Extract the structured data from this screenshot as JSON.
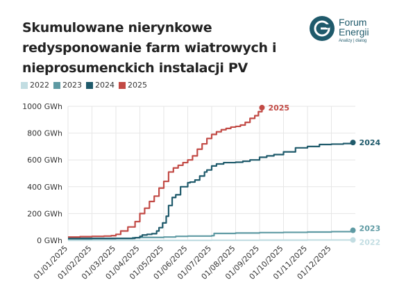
{
  "title_lines": [
    "Skumulowane nierynkowe",
    "redysponowanie farm wiatrowych i",
    "nieprosumenckich instalacji PV"
  ],
  "logo": {
    "name_line1": "Forum",
    "name_line2": "Energii",
    "tagline": "Analizy | dialog"
  },
  "colors": {
    "s2022": "#c2dde2",
    "s2023": "#5e9aa3",
    "s2024": "#1f5a6b",
    "s2025": "#c24a45",
    "grid": "#e6e6e6",
    "axis_text": "#333333"
  },
  "chart_data": {
    "type": "line",
    "y_unit": "GWh",
    "ylim": [
      0,
      1000
    ],
    "y_ticks": [
      {
        "value": 0,
        "label": "0 GWh"
      },
      {
        "value": 200,
        "label": "200 GWh"
      },
      {
        "value": 400,
        "label": "400 GWh"
      },
      {
        "value": 600,
        "label": "600 GWh"
      },
      {
        "value": 800,
        "label": "800 GWh"
      },
      {
        "value": 1000,
        "label": "1000 GWh"
      }
    ],
    "x_ticks": [
      "01/01/2025",
      "01/02/2025",
      "01/03/2025",
      "01/04/2025",
      "01/05/2025",
      "01/06/2025",
      "01/07/2025",
      "01/08/2025",
      "01/09/2025",
      "01/10/2025",
      "01/11/2025",
      "01/12/2025"
    ],
    "legend_position": "top-left",
    "grid": true,
    "series": [
      {
        "name": "2022",
        "end_label": "2022",
        "x": [
          0,
          1,
          2,
          3,
          4,
          5,
          6,
          7,
          8,
          9,
          10,
          11,
          11.9
        ],
        "values": [
          0,
          0,
          0,
          0,
          0,
          0,
          1,
          1,
          2,
          2,
          3,
          3,
          3
        ]
      },
      {
        "name": "2023",
        "end_label": "2023",
        "x": [
          0,
          1,
          2,
          2.7,
          3,
          4,
          4.5,
          5,
          6,
          6.1,
          7,
          8,
          9,
          10,
          11,
          11.9
        ],
        "values": [
          10,
          12,
          14,
          20,
          22,
          25,
          30,
          32,
          35,
          52,
          55,
          58,
          60,
          62,
          65,
          75
        ]
      },
      {
        "name": "2024",
        "end_label": "2024",
        "x": [
          0,
          0.5,
          1,
          1.5,
          2,
          2.3,
          2.5,
          2.8,
          3,
          3.1,
          3.3,
          3.5,
          3.7,
          3.8,
          3.95,
          4.1,
          4.2,
          4.35,
          4.5,
          4.7,
          5,
          5.1,
          5.3,
          5.5,
          5.7,
          5.8,
          6,
          6.2,
          6.5,
          7,
          7.3,
          7.6,
          8,
          8.3,
          8.6,
          9,
          9.5,
          10,
          10.5,
          11,
          11.5,
          11.9
        ],
        "values": [
          15,
          15,
          15,
          15,
          15,
          15,
          15,
          20,
          30,
          40,
          45,
          50,
          70,
          95,
          130,
          180,
          260,
          320,
          340,
          400,
          430,
          435,
          450,
          480,
          510,
          525,
          555,
          570,
          580,
          583,
          590,
          600,
          620,
          630,
          640,
          660,
          690,
          700,
          715,
          718,
          722,
          730
        ]
      },
      {
        "name": "2025",
        "end_label": "2025",
        "x": [
          0,
          0.5,
          1,
          1.5,
          1.8,
          2,
          2.2,
          2.5,
          2.8,
          3,
          3.2,
          3.4,
          3.6,
          3.8,
          4,
          4.2,
          4.4,
          4.6,
          4.8,
          5,
          5.2,
          5.4,
          5.6,
          5.8,
          6,
          6.2,
          6.4,
          6.6,
          6.8,
          7,
          7.2,
          7.4,
          7.6,
          7.8,
          7.95,
          8.1
        ],
        "values": [
          25,
          28,
          30,
          32,
          35,
          45,
          70,
          100,
          140,
          200,
          240,
          290,
          330,
          390,
          440,
          510,
          540,
          560,
          580,
          600,
          630,
          680,
          720,
          760,
          790,
          810,
          825,
          835,
          845,
          850,
          860,
          880,
          910,
          930,
          960,
          990
        ]
      }
    ]
  }
}
